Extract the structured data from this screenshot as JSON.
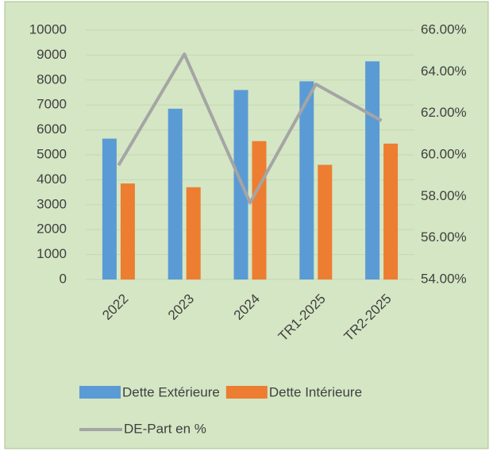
{
  "chart_data": {
    "type": "bar_line",
    "categories": [
      "2022",
      "2023",
      "2024",
      "TR1-2025",
      "TR2-2025"
    ],
    "series": [
      {
        "name": "Dette Extérieure",
        "type": "bar",
        "color": "#5b9bd5",
        "values": [
          5650,
          6850,
          7600,
          7950,
          8750
        ]
      },
      {
        "name": "Dette Intérieure",
        "type": "bar",
        "color": "#ed7d31",
        "values": [
          3850,
          3700,
          5550,
          4600,
          5450
        ]
      },
      {
        "name": "DE-Part en %",
        "type": "line",
        "axis": "y2",
        "color": "#a5a5a5",
        "values": [
          59.5,
          64.85,
          57.7,
          63.4,
          61.65
        ]
      }
    ],
    "ylim": [
      0,
      10000
    ],
    "yticks": [
      0,
      1000,
      2000,
      3000,
      4000,
      5000,
      6000,
      7000,
      8000,
      9000,
      10000
    ],
    "y2lim": [
      54,
      66
    ],
    "y2ticks": [
      {
        "value": 54,
        "label": "54.00%"
      },
      {
        "value": 56,
        "label": "56.00%"
      },
      {
        "value": 58,
        "label": "58.00%"
      },
      {
        "value": 60,
        "label": "60.00%"
      },
      {
        "value": 62,
        "label": "62.00%"
      },
      {
        "value": 64,
        "label": "64.00%"
      },
      {
        "value": 66,
        "label": "66.00%"
      }
    ],
    "grid": true
  }
}
